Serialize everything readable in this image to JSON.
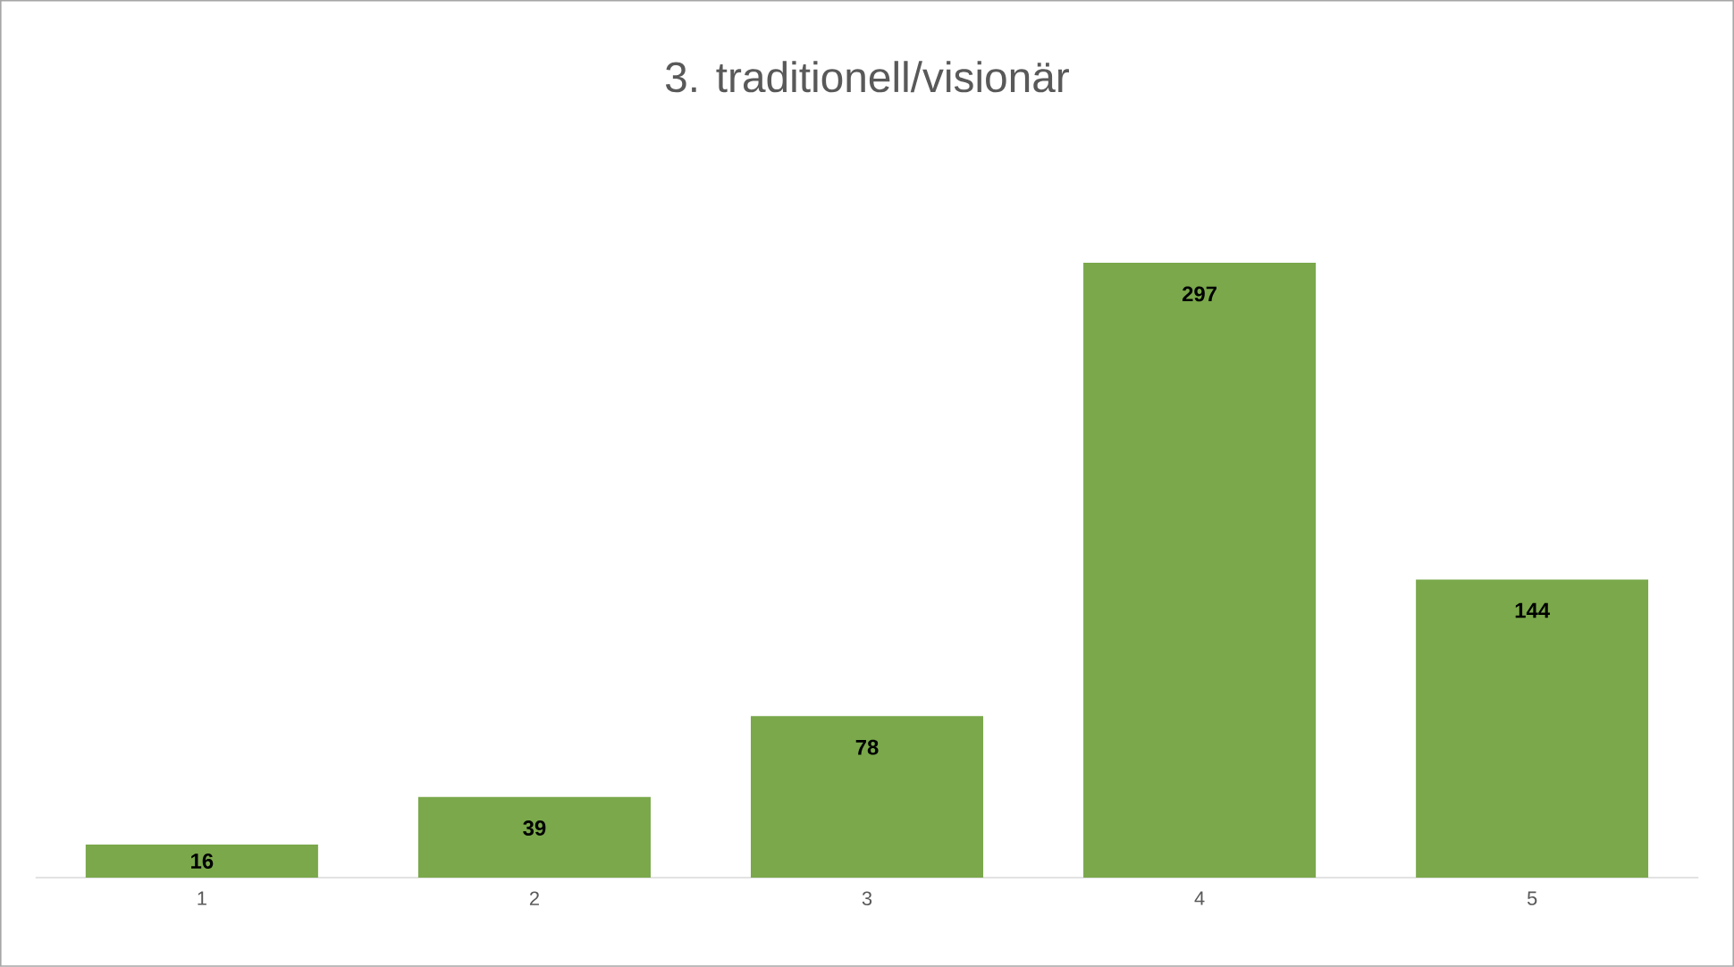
{
  "chart_data": {
    "type": "bar",
    "title": "3. traditionell/visionär",
    "categories": [
      "1",
      "2",
      "3",
      "4",
      "5"
    ],
    "values": [
      16,
      39,
      78,
      297,
      144
    ],
    "color": "#7aa84b",
    "data_labels": true
  }
}
